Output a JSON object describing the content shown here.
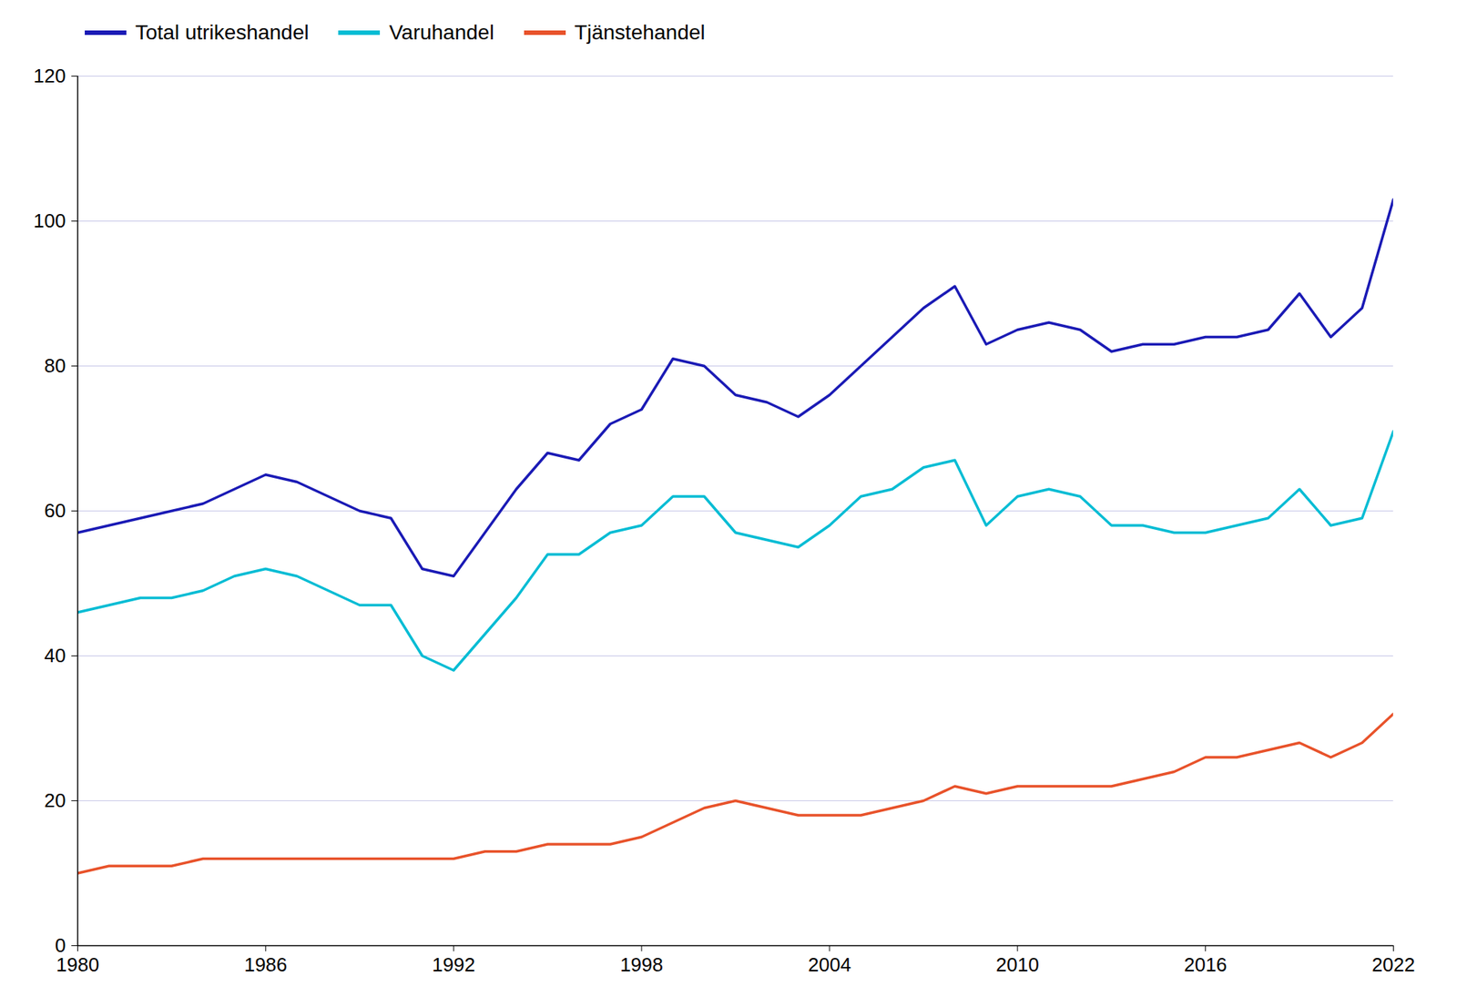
{
  "chart_data": {
    "type": "line",
    "x": [
      1980,
      1981,
      1982,
      1983,
      1984,
      1985,
      1986,
      1987,
      1988,
      1989,
      1990,
      1991,
      1992,
      1993,
      1994,
      1995,
      1996,
      1997,
      1998,
      1999,
      2000,
      2001,
      2002,
      2003,
      2004,
      2005,
      2006,
      2007,
      2008,
      2009,
      2010,
      2011,
      2012,
      2013,
      2014,
      2015,
      2016,
      2017,
      2018,
      2019,
      2020,
      2021,
      2022
    ],
    "series": [
      {
        "name": "Total utrikeshandel",
        "color": "#1a1ab5",
        "values": [
          57,
          58,
          59,
          60,
          61,
          63,
          65,
          64,
          62,
          60,
          59,
          52,
          51,
          57,
          63,
          68,
          67,
          72,
          74,
          81,
          80,
          76,
          75,
          73,
          76,
          80,
          84,
          88,
          91,
          83,
          85,
          86,
          85,
          82,
          83,
          83,
          84,
          84,
          85,
          90,
          84,
          88,
          103
        ]
      },
      {
        "name": "Varuhandel",
        "color": "#00bcd4",
        "values": [
          46,
          47,
          48,
          48,
          49,
          51,
          52,
          51,
          49,
          47,
          47,
          40,
          38,
          43,
          48,
          54,
          54,
          57,
          58,
          62,
          62,
          57,
          56,
          55,
          58,
          62,
          63,
          66,
          67,
          58,
          62,
          63,
          62,
          58,
          58,
          57,
          57,
          58,
          59,
          63,
          58,
          59,
          71
        ]
      },
      {
        "name": "Tjänstehandel",
        "color": "#e8522a",
        "values": [
          10,
          11,
          11,
          11,
          12,
          12,
          12,
          12,
          12,
          12,
          12,
          12,
          12,
          13,
          13,
          14,
          14,
          14,
          15,
          17,
          19,
          20,
          19,
          18,
          18,
          18,
          19,
          20,
          22,
          21,
          22,
          22,
          22,
          22,
          23,
          24,
          26,
          26,
          27,
          28,
          26,
          28,
          32
        ]
      }
    ],
    "xlim": [
      1980,
      2022
    ],
    "xticks": [
      1980,
      1986,
      1992,
      1998,
      2004,
      2010,
      2016,
      2022
    ],
    "ylim": [
      0,
      120
    ],
    "yticks": [
      0,
      20,
      40,
      60,
      80,
      100,
      120
    ],
    "grid": true,
    "legend": "upper left"
  }
}
